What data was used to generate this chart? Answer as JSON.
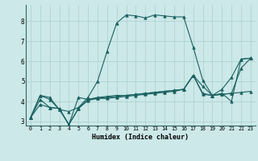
{
  "xlabel": "Humidex (Indice chaleur)",
  "ylabel": "",
  "bg_color": "#cce8e8",
  "grid_color": "#aacfcf",
  "line_color": "#1a6060",
  "xlim": [
    -0.5,
    23.5
  ],
  "ylim": [
    2.8,
    8.8
  ],
  "xticks": [
    0,
    1,
    2,
    3,
    4,
    5,
    6,
    7,
    8,
    9,
    10,
    11,
    12,
    13,
    14,
    15,
    16,
    17,
    18,
    19,
    20,
    21,
    22,
    23
  ],
  "yticks": [
    3,
    4,
    5,
    6,
    7,
    8
  ],
  "series": [
    [
      3.2,
      4.3,
      4.2,
      3.6,
      3.5,
      3.7,
      4.2,
      5.0,
      6.5,
      7.9,
      8.3,
      8.25,
      8.15,
      8.3,
      8.25,
      8.2,
      8.2,
      6.7,
      5.05,
      4.3,
      4.4,
      4.0,
      6.1,
      6.15
    ],
    [
      3.2,
      4.3,
      4.1,
      3.6,
      2.85,
      4.2,
      4.1,
      4.15,
      4.15,
      4.2,
      4.25,
      4.3,
      4.35,
      4.4,
      4.45,
      4.5,
      4.6,
      5.3,
      4.4,
      4.3,
      4.6,
      5.2,
      6.1,
      6.15
    ],
    [
      3.2,
      4.1,
      3.7,
      3.65,
      2.85,
      3.65,
      4.1,
      4.2,
      4.25,
      4.3,
      4.3,
      4.35,
      4.4,
      4.45,
      4.5,
      4.55,
      4.6,
      5.3,
      4.75,
      4.3,
      4.35,
      4.4,
      5.65,
      6.15
    ],
    [
      3.2,
      3.85,
      3.7,
      3.65,
      2.85,
      3.65,
      4.05,
      4.15,
      4.2,
      4.25,
      4.3,
      4.35,
      4.4,
      4.45,
      4.5,
      4.55,
      4.6,
      5.3,
      4.35,
      4.3,
      4.35,
      4.4,
      4.45,
      4.5
    ]
  ]
}
